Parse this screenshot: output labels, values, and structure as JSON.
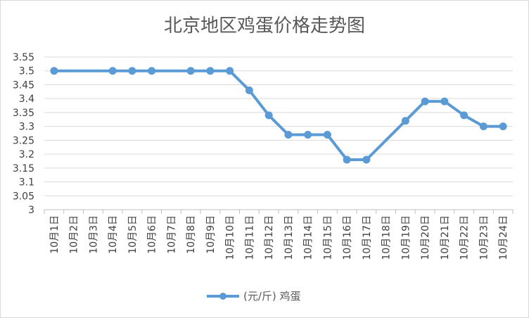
{
  "chart_data": {
    "type": "line",
    "title": "北京地区鸡蛋价格走势图",
    "xlabel": "",
    "ylabel": "",
    "categories": [
      "10月1日",
      "10月2日",
      "10月3日",
      "10月4日",
      "10月5日",
      "10月6日",
      "10月7日",
      "10月8日",
      "10月9日",
      "10月10日",
      "10月11日",
      "10月12日",
      "10月13日",
      "10月14日",
      "10月15日",
      "10月16日",
      "10月17日",
      "10月18日",
      "10月19日",
      "10月20日",
      "10月21日",
      "10月22日",
      "10月23日",
      "10月24日"
    ],
    "series": [
      {
        "name": "(元/斤) 鸡蛋",
        "color": "#5b9bd5",
        "values": [
          3.5,
          null,
          null,
          3.5,
          3.5,
          3.5,
          null,
          3.5,
          3.5,
          3.5,
          3.43,
          3.34,
          3.27,
          3.27,
          3.27,
          3.18,
          3.18,
          null,
          3.32,
          3.39,
          3.39,
          3.34,
          3.3,
          3.3
        ]
      }
    ],
    "ylim": [
      3,
      3.55
    ],
    "yticks": [
      "3.55",
      "3.5",
      "3.45",
      "3.4",
      "3.35",
      "3.3",
      "3.25",
      "3.2",
      "3.15",
      "3.1",
      "3.05",
      "3"
    ],
    "grid": true,
    "legend": "bottom"
  }
}
